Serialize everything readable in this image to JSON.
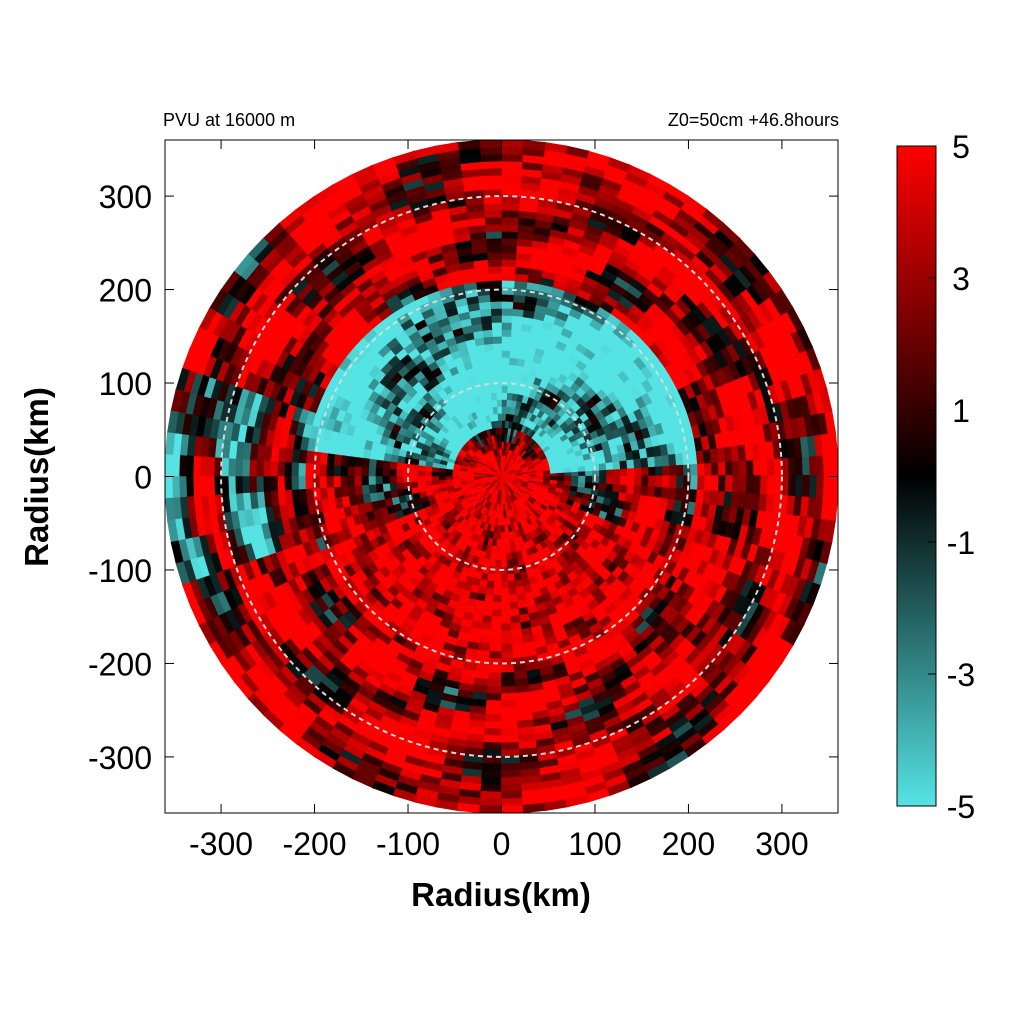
{
  "chart_data": {
    "type": "heatmap",
    "title": "PVU at 16000 m",
    "subtitle": "Z0=50cm  +46.8hours",
    "xlabel": "Radius(km)",
    "ylabel": "Radius(km)",
    "xlim": [
      -360,
      360
    ],
    "ylim": [
      -360,
      360
    ],
    "x_ticks": [
      -300,
      -200,
      -100,
      0,
      100,
      200,
      300
    ],
    "y_ticks": [
      300,
      200,
      100,
      0,
      -100,
      -200,
      -300
    ],
    "data_radius_km": 360,
    "reference_circles_km": [
      100,
      200,
      300
    ],
    "grid": false,
    "colorbar": {
      "min": -5,
      "max": 5,
      "ticks": [
        5,
        3,
        1,
        -1,
        -3,
        -5
      ],
      "palette": [
        {
          "value": -5,
          "color": "#55e3e3"
        },
        {
          "value": -2.5,
          "color": "#2b7272"
        },
        {
          "value": 0,
          "color": "#000000"
        },
        {
          "value": 2.5,
          "color": "#800000"
        },
        {
          "value": 5,
          "color": "#ff0000"
        }
      ]
    },
    "field_description_regions": [
      {
        "region": "center",
        "value": 5
      },
      {
        "region": "north-inner ring (r 50-200 km, upper half)",
        "value": -5
      },
      {
        "region": "outer rings",
        "value": 3
      },
      {
        "region": "scattered patches west and southeast",
        "value": -4
      }
    ]
  }
}
